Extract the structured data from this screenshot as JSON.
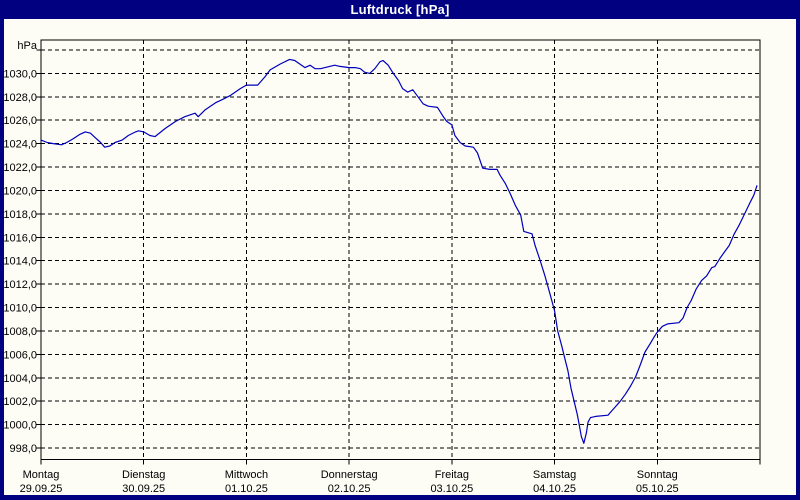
{
  "window": {
    "title": "Luftdruck [hPa]"
  },
  "colors": {
    "title_bar": "#000080",
    "title_text": "#ffffff",
    "window_border": "#000080",
    "background": "#fdfdf6",
    "plot_frame": "#000000",
    "grid": "#000000",
    "axis_text": "#000000",
    "line": "#0000bb"
  },
  "chart_data": {
    "type": "line",
    "title": "Luftdruck [hPa]",
    "ylabel": "hPa",
    "xlabel": "",
    "grid": "dashed",
    "legend": "none",
    "y_axis": {
      "unit_label": "hPa",
      "ylim": [
        997.0,
        1032.9
      ],
      "grid_step": 2,
      "grid_top_value_unlabeled": 1032,
      "tick_values": [
        1030,
        1028,
        1026,
        1024,
        1022,
        1020,
        1018,
        1016,
        1014,
        1012,
        1010,
        1008,
        1006,
        1004,
        1002,
        1000,
        998
      ],
      "tick_labels": [
        "1030,0",
        "1028,0",
        "1026,0",
        "1024,0",
        "1022,0",
        "1020,0",
        "1018,0",
        "1016,0",
        "1014,0",
        "1012,0",
        "1010,0",
        "1008,0",
        "1006,0",
        "1004,0",
        "1002,0",
        "1000,0",
        "998,0"
      ]
    },
    "x_axis": {
      "range_days": 7,
      "days": [
        {
          "label": "Montag",
          "date": "29.09.25"
        },
        {
          "label": "Dienstag",
          "date": "30.09.25"
        },
        {
          "label": "Mittwoch",
          "date": "01.10.25"
        },
        {
          "label": "Donnerstag",
          "date": "02.10.25"
        },
        {
          "label": "Freitag",
          "date": "03.10.25"
        },
        {
          "label": "Samstag",
          "date": "04.10.25"
        },
        {
          "label": "Sonntag",
          "date": "05.10.25"
        }
      ]
    },
    "series": [
      {
        "name": "Luftdruck",
        "unit": "hPa",
        "points": [
          [
            0.0,
            1024.3
          ],
          [
            0.06,
            1024.1
          ],
          [
            0.12,
            1024.0
          ],
          [
            0.2,
            1023.9
          ],
          [
            0.25,
            1024.1
          ],
          [
            0.31,
            1024.4
          ],
          [
            0.38,
            1024.8
          ],
          [
            0.43,
            1025.0
          ],
          [
            0.48,
            1024.9
          ],
          [
            0.53,
            1024.5
          ],
          [
            0.58,
            1024.1
          ],
          [
            0.62,
            1023.7
          ],
          [
            0.67,
            1023.8
          ],
          [
            0.72,
            1024.1
          ],
          [
            0.79,
            1024.3
          ],
          [
            0.85,
            1024.7
          ],
          [
            0.92,
            1025.0
          ],
          [
            0.95,
            1025.1
          ],
          [
            1.0,
            1025.0
          ],
          [
            1.06,
            1024.7
          ],
          [
            1.11,
            1024.6
          ],
          [
            1.21,
            1025.3
          ],
          [
            1.31,
            1025.9
          ],
          [
            1.4,
            1026.3
          ],
          [
            1.5,
            1026.6
          ],
          [
            1.53,
            1026.3
          ],
          [
            1.6,
            1026.9
          ],
          [
            1.7,
            1027.5
          ],
          [
            1.75,
            1027.7
          ],
          [
            1.84,
            1028.1
          ],
          [
            1.94,
            1028.7
          ],
          [
            2.0,
            1029.0
          ],
          [
            2.11,
            1029.0
          ],
          [
            2.18,
            1029.7
          ],
          [
            2.23,
            1030.3
          ],
          [
            2.33,
            1030.8
          ],
          [
            2.42,
            1031.2
          ],
          [
            2.47,
            1031.1
          ],
          [
            2.52,
            1030.8
          ],
          [
            2.57,
            1030.5
          ],
          [
            2.62,
            1030.7
          ],
          [
            2.67,
            1030.4
          ],
          [
            2.72,
            1030.4
          ],
          [
            2.81,
            1030.6
          ],
          [
            2.86,
            1030.7
          ],
          [
            2.91,
            1030.6
          ],
          [
            3.0,
            1030.5
          ],
          [
            3.06,
            1030.5
          ],
          [
            3.11,
            1030.4
          ],
          [
            3.15,
            1030.1
          ],
          [
            3.2,
            1030.0
          ],
          [
            3.25,
            1030.4
          ],
          [
            3.3,
            1031.0
          ],
          [
            3.33,
            1031.1
          ],
          [
            3.38,
            1030.7
          ],
          [
            3.43,
            1030.0
          ],
          [
            3.48,
            1029.4
          ],
          [
            3.52,
            1028.7
          ],
          [
            3.57,
            1028.4
          ],
          [
            3.62,
            1028.6
          ],
          [
            3.67,
            1028.0
          ],
          [
            3.72,
            1027.4
          ],
          [
            3.77,
            1027.2
          ],
          [
            3.86,
            1027.1
          ],
          [
            3.91,
            1026.4
          ],
          [
            3.95,
            1025.9
          ],
          [
            4.0,
            1025.6
          ],
          [
            4.03,
            1024.7
          ],
          [
            4.08,
            1024.1
          ],
          [
            4.13,
            1023.8
          ],
          [
            4.21,
            1023.7
          ],
          [
            4.25,
            1023.2
          ],
          [
            4.3,
            1021.9
          ],
          [
            4.37,
            1021.8
          ],
          [
            4.44,
            1021.8
          ],
          [
            4.47,
            1021.3
          ],
          [
            4.52,
            1020.6
          ],
          [
            4.57,
            1019.7
          ],
          [
            4.62,
            1018.7
          ],
          [
            4.67,
            1017.9
          ],
          [
            4.7,
            1016.5
          ],
          [
            4.78,
            1016.3
          ],
          [
            4.81,
            1015.3
          ],
          [
            4.86,
            1014.0
          ],
          [
            4.91,
            1012.6
          ],
          [
            4.96,
            1011.0
          ],
          [
            5.0,
            1009.7
          ],
          [
            5.03,
            1008.0
          ],
          [
            5.07,
            1006.7
          ],
          [
            5.09,
            1006.0
          ],
          [
            5.13,
            1004.6
          ],
          [
            5.16,
            1003.1
          ],
          [
            5.19,
            1002.0
          ],
          [
            5.22,
            1000.9
          ],
          [
            5.24,
            1000.0
          ],
          [
            5.26,
            999.0
          ],
          [
            5.285,
            998.4
          ],
          [
            5.31,
            999.3
          ],
          [
            5.325,
            1000.2
          ],
          [
            5.35,
            1000.6
          ],
          [
            5.4,
            1000.7
          ],
          [
            5.52,
            1000.8
          ],
          [
            5.54,
            1001.0
          ],
          [
            5.59,
            1001.5
          ],
          [
            5.64,
            1002.0
          ],
          [
            5.69,
            1002.6
          ],
          [
            5.74,
            1003.3
          ],
          [
            5.79,
            1004.1
          ],
          [
            5.83,
            1005.0
          ],
          [
            5.88,
            1006.2
          ],
          [
            5.93,
            1006.9
          ],
          [
            5.97,
            1007.5
          ],
          [
            6.0,
            1007.9
          ],
          [
            6.05,
            1008.4
          ],
          [
            6.1,
            1008.6
          ],
          [
            6.21,
            1008.7
          ],
          [
            6.25,
            1009.1
          ],
          [
            6.29,
            1010.0
          ],
          [
            6.33,
            1010.6
          ],
          [
            6.38,
            1011.6
          ],
          [
            6.43,
            1012.3
          ],
          [
            6.48,
            1012.7
          ],
          [
            6.53,
            1013.4
          ],
          [
            6.56,
            1013.5
          ],
          [
            6.61,
            1014.2
          ],
          [
            6.65,
            1014.7
          ],
          [
            6.7,
            1015.3
          ],
          [
            6.75,
            1016.3
          ],
          [
            6.8,
            1017.1
          ],
          [
            6.85,
            1018.0
          ],
          [
            6.9,
            1018.9
          ],
          [
            6.94,
            1019.6
          ],
          [
            6.97,
            1020.4
          ]
        ]
      }
    ]
  }
}
